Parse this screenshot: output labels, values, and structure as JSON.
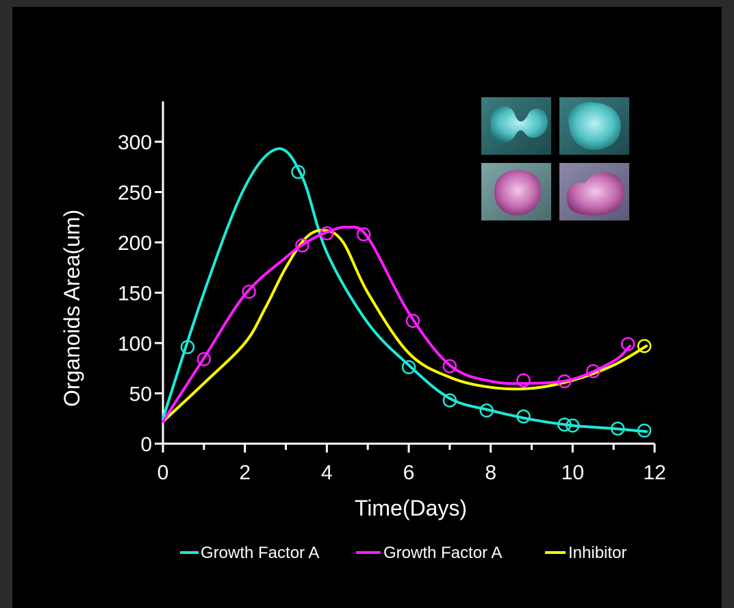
{
  "chart_data": {
    "type": "line",
    "title": "",
    "xlabel": "Time(Days)",
    "ylabel": "Organoids Area(um)",
    "xlim": [
      0,
      12
    ],
    "ylim": [
      0,
      300
    ],
    "xticks": [
      0,
      2,
      4,
      6,
      8,
      10,
      12
    ],
    "yticks": [
      0,
      50,
      100,
      150,
      200,
      250,
      300
    ],
    "grid": false,
    "legend_position": "bottom",
    "series": [
      {
        "name": "Growth Factor A",
        "color": "#1de9d6",
        "curve": [
          [
            0,
            25
          ],
          [
            1,
            150
          ],
          [
            2,
            255
          ],
          [
            2.8,
            293
          ],
          [
            3.4,
            265
          ],
          [
            4,
            190
          ],
          [
            5,
            120
          ],
          [
            6,
            78
          ],
          [
            7,
            45
          ],
          [
            8,
            33
          ],
          [
            9,
            24
          ],
          [
            10,
            18
          ],
          [
            11,
            15
          ],
          [
            11.8,
            12
          ]
        ],
        "markers": [
          [
            0.6,
            96
          ],
          [
            3.3,
            270
          ],
          [
            6,
            76
          ],
          [
            7,
            43
          ],
          [
            7.9,
            33
          ],
          [
            8.8,
            27
          ],
          [
            9.8,
            19
          ],
          [
            10,
            18
          ],
          [
            11.1,
            15
          ],
          [
            11.75,
            13
          ]
        ]
      },
      {
        "name": "Growth Factor A",
        "color": "#ff1cff",
        "curve": [
          [
            0,
            22
          ],
          [
            1,
            85
          ],
          [
            2,
            148
          ],
          [
            3,
            185
          ],
          [
            3.5,
            200
          ],
          [
            4,
            210
          ],
          [
            4.5,
            215
          ],
          [
            5,
            205
          ],
          [
            6,
            130
          ],
          [
            7,
            78
          ],
          [
            8,
            62
          ],
          [
            9,
            60
          ],
          [
            10,
            64
          ],
          [
            11,
            82
          ],
          [
            11.4,
            97
          ]
        ],
        "markers": [
          [
            1,
            84
          ],
          [
            2.1,
            151
          ],
          [
            3.4,
            197
          ],
          [
            4,
            209
          ],
          [
            4.9,
            208
          ],
          [
            6.1,
            122
          ],
          [
            7,
            77
          ],
          [
            8.8,
            63
          ],
          [
            9.8,
            62
          ],
          [
            10.5,
            72
          ],
          [
            11.35,
            99
          ]
        ]
      },
      {
        "name": "Inhibitor",
        "color": "#ffff00",
        "curve": [
          [
            0,
            22
          ],
          [
            1,
            60
          ],
          [
            2,
            100
          ],
          [
            2.5,
            135
          ],
          [
            3,
            175
          ],
          [
            3.5,
            205
          ],
          [
            3.95,
            212
          ],
          [
            4.4,
            200
          ],
          [
            5,
            150
          ],
          [
            6,
            90
          ],
          [
            7,
            66
          ],
          [
            8,
            56
          ],
          [
            9,
            55
          ],
          [
            10,
            63
          ],
          [
            11,
            78
          ],
          [
            11.8,
            97
          ]
        ],
        "markers": [
          [
            11.75,
            97
          ]
        ]
      }
    ]
  },
  "legend": [
    "Growth Factor A",
    "Growth Factor A",
    "Inhibitor"
  ]
}
